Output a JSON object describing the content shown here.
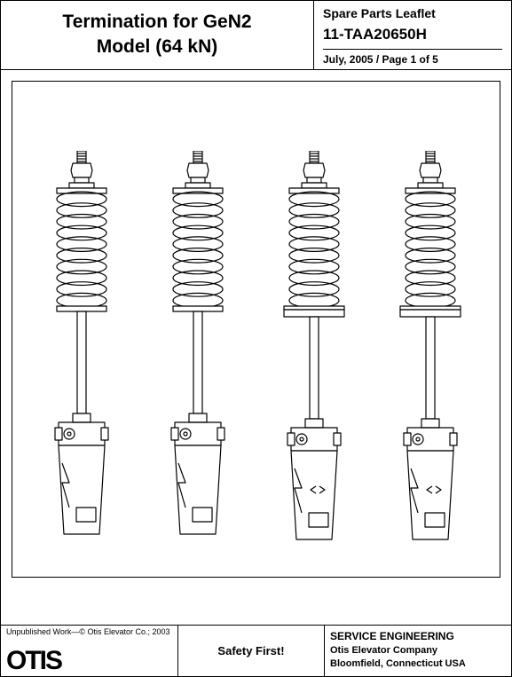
{
  "header": {
    "title_line1": "Termination for GeN2",
    "title_line2": "Model (64 kN)",
    "leaflet_label": "Spare Parts Leaflet",
    "part_number": "11-TAA20650H",
    "date": "July, 2005",
    "page_info": "Page 1 of 5"
  },
  "figure": {
    "type": "technical-drawing",
    "count": 4,
    "stroke": "#000000",
    "fill": "#ffffff",
    "line_width": 1.2,
    "variants": [
      {
        "base_plate": false
      },
      {
        "base_plate": false
      },
      {
        "base_plate": true
      },
      {
        "base_plate": true
      }
    ]
  },
  "footer": {
    "copyright": "Unpublished Work—© Otis Elevator Co.; 2003",
    "brand": "OTIS",
    "safety": "Safety First!",
    "department": "SERVICE ENGINEERING",
    "company": "Otis Elevator Company",
    "location": "Bloomfield, Connecticut USA"
  }
}
